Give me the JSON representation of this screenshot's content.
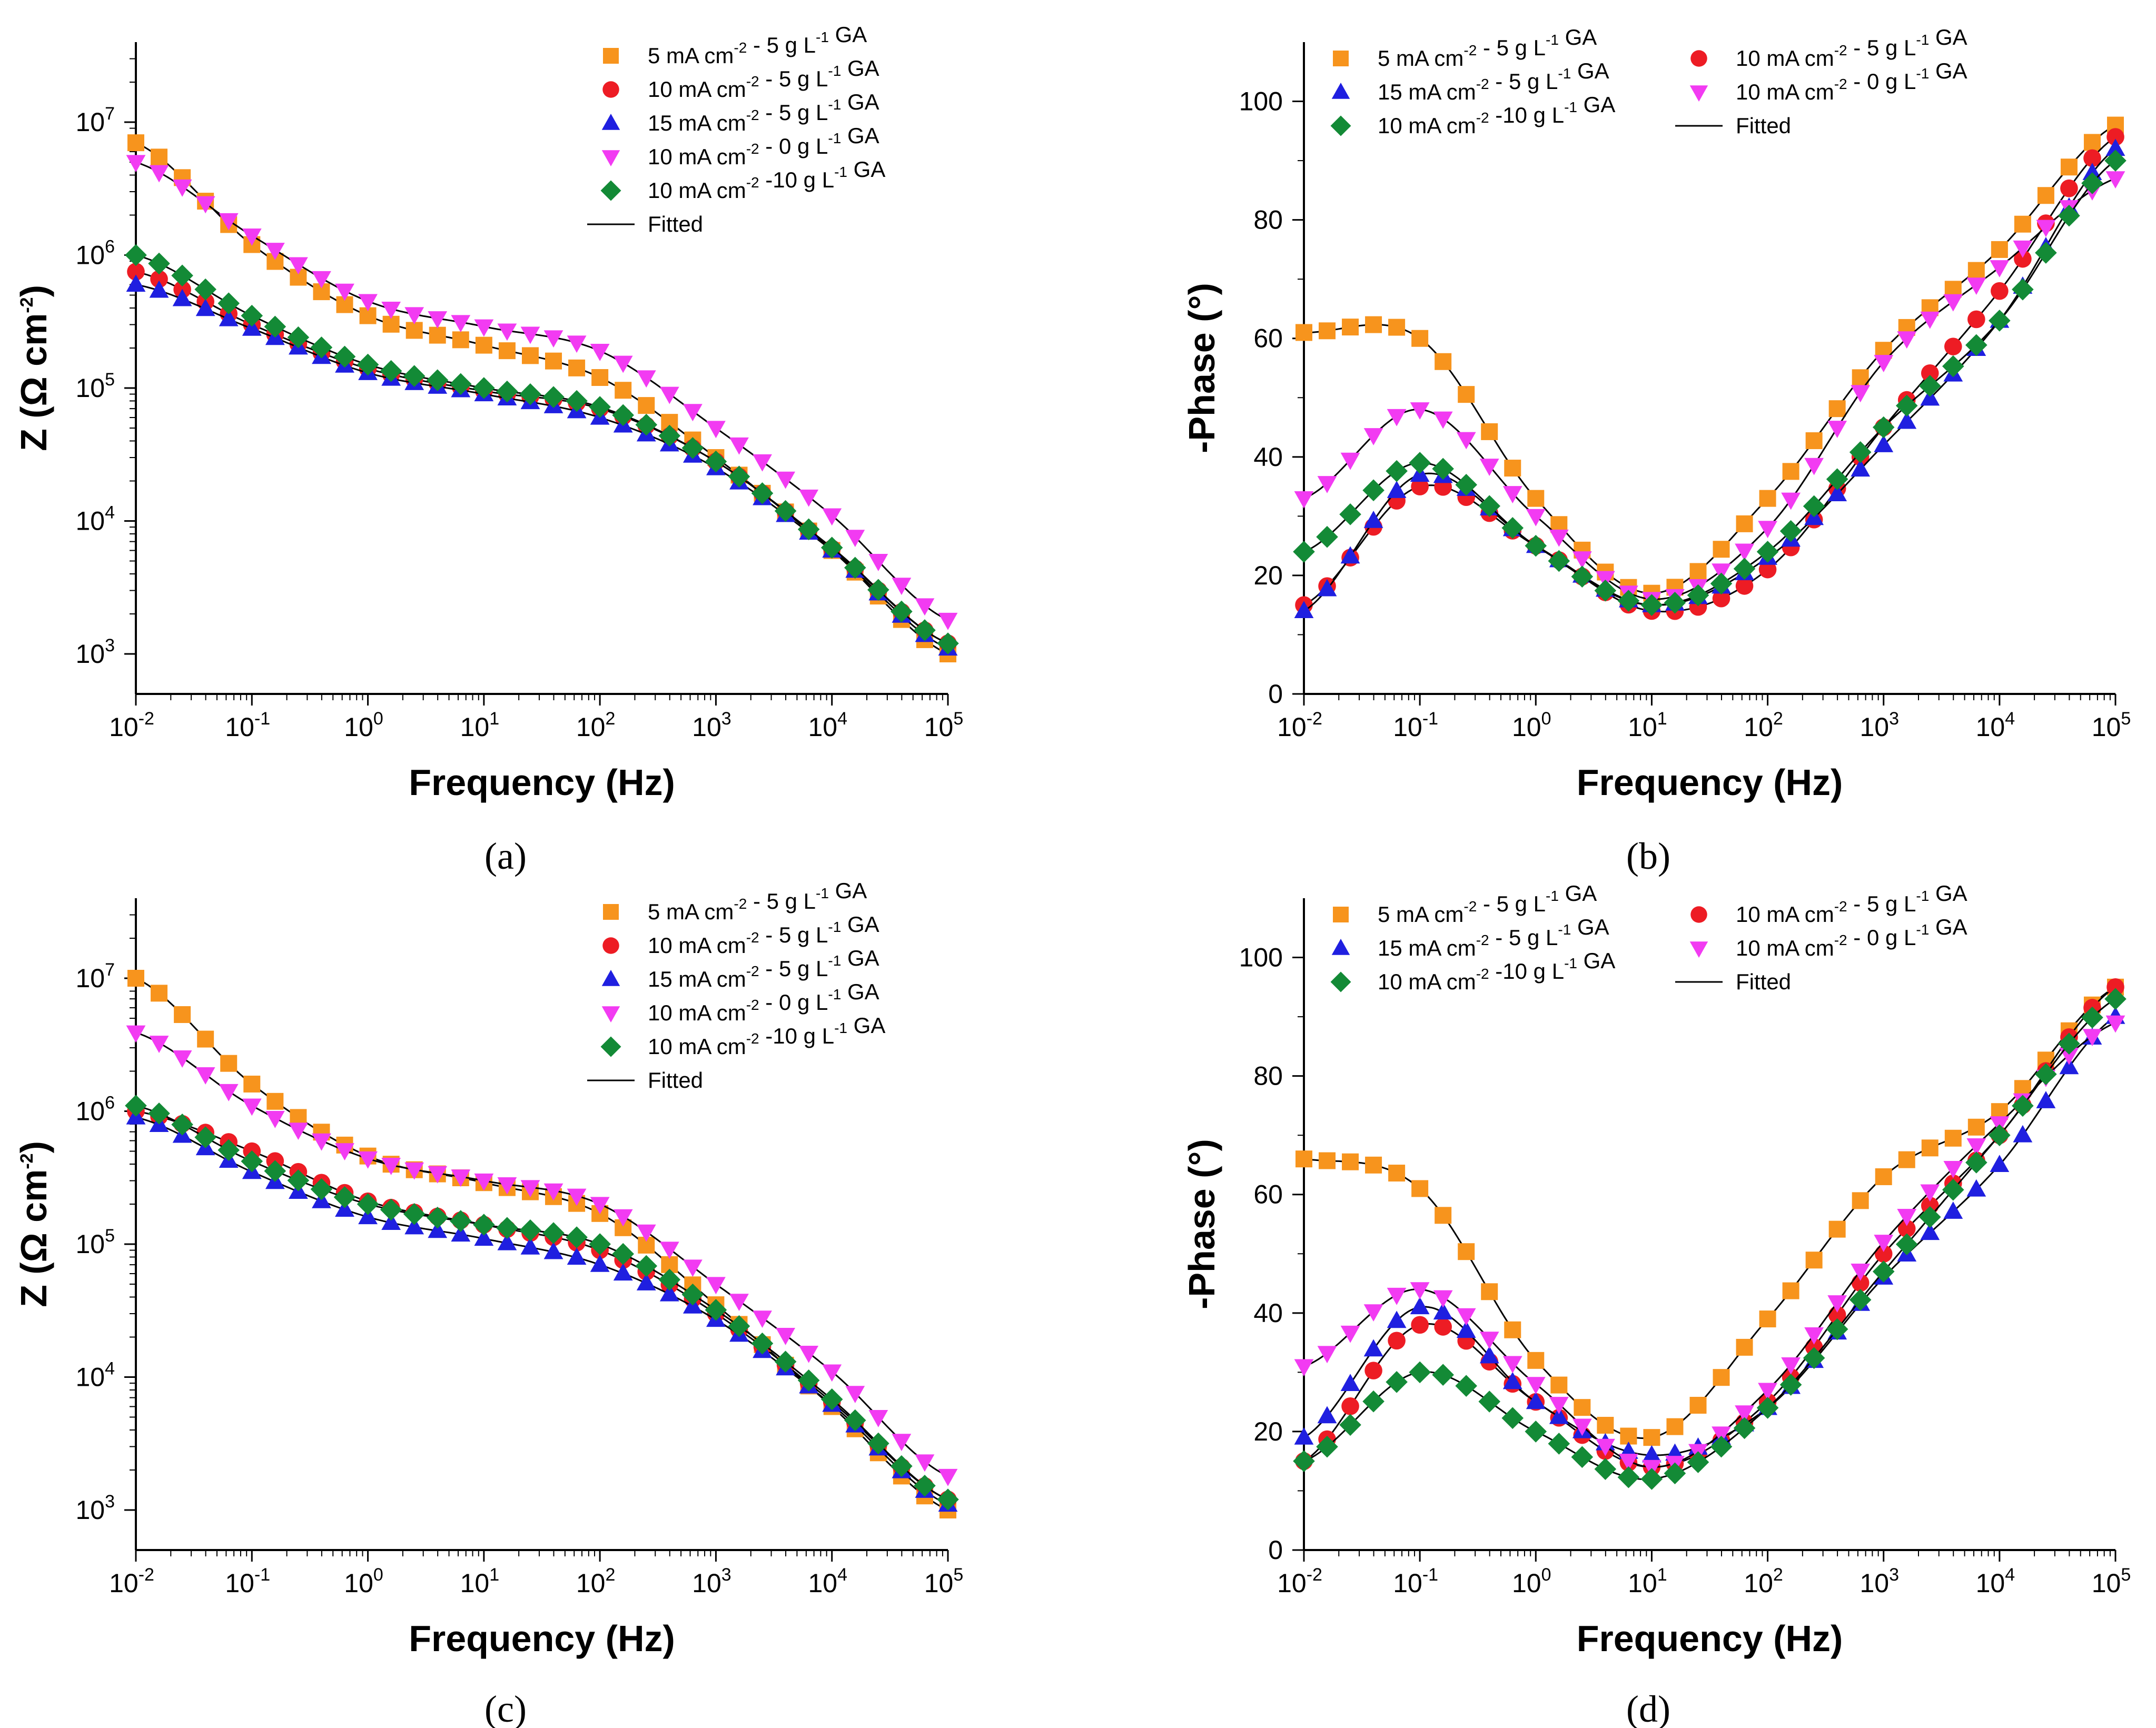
{
  "figure_type": "Electrochemical impedance spectroscopy",
  "chart_data": [
    {
      "panel": "(a)",
      "type": "scatter",
      "subtype": "bode-magnitude",
      "xlabel": "Frequency (Hz)",
      "ylabel": "Z (Ω cm-2)",
      "xscale": "log",
      "yscale": "log",
      "xlim": [
        0.01,
        100000
      ],
      "ylim": [
        500,
        40000000
      ],
      "x_ticks": [
        "10^-2",
        "10^-1",
        "10^0",
        "10^1",
        "10^2",
        "10^3",
        "10^4",
        "10^5"
      ],
      "y_ticks": [
        "10^3",
        "10^4",
        "10^5",
        "10^6",
        "10^7"
      ],
      "legend_position": "top-right",
      "legend": [
        {
          "id": "s5",
          "label": "5 mA cm-2 - 5 g L-1 GA",
          "marker": "square",
          "color": "#F7941D"
        },
        {
          "id": "s10",
          "label": "10 mA cm-2 - 5 g L-1 GA",
          "marker": "circle",
          "color": "#ED1C24"
        },
        {
          "id": "s15",
          "label": "15 mA cm-2 - 5 g L-1 GA",
          "marker": "triangle-up",
          "color": "#1F1FE0"
        },
        {
          "id": "s0",
          "label": "10 mA cm-2 - 0 g L-1 GA",
          "marker": "triangle-down",
          "color": "#F23BF2"
        },
        {
          "id": "sg10",
          "label": "10 mA cm-2 -10 g L-1 GA",
          "marker": "diamond",
          "color": "#138A36"
        },
        {
          "id": "fit",
          "label": "Fitted",
          "marker": "line",
          "color": "#000000"
        }
      ],
      "series": [
        {
          "id": "s5",
          "name": "5 mA cm-2 - 5 g L-1 GA",
          "x": [
            0.01,
            0.1,
            1,
            10,
            100,
            1000,
            10000,
            100000
          ],
          "y": [
            7000000,
            1200000,
            350000,
            210000,
            120000,
            30000,
            6000,
            1000
          ]
        },
        {
          "id": "s10",
          "name": "10 mA cm-2 - 5 g L-1 GA",
          "x": [
            0.01,
            0.1,
            1,
            10,
            100,
            1000,
            10000,
            100000
          ],
          "y": [
            750000,
            300000,
            140000,
            95000,
            70000,
            28000,
            6200,
            1200
          ]
        },
        {
          "id": "s15",
          "name": "15 mA cm-2 - 5 g L-1 GA",
          "x": [
            0.01,
            0.1,
            1,
            10,
            100,
            1000,
            10000,
            100000
          ],
          "y": [
            600000,
            280000,
            130000,
            90000,
            60000,
            25000,
            6000,
            1100
          ]
        },
        {
          "id": "s0",
          "name": "10 mA cm-2 - 0 g L-1 GA",
          "x": [
            0.01,
            0.1,
            1,
            10,
            100,
            1000,
            10000,
            100000
          ],
          "y": [
            5000000,
            1400000,
            450000,
            290000,
            190000,
            50000,
            11000,
            1800
          ]
        },
        {
          "id": "sg10",
          "name": "10 mA cm-2 -10 g L-1 GA",
          "x": [
            0.01,
            0.1,
            1,
            10,
            100,
            1000,
            10000,
            100000
          ],
          "y": [
            1000000,
            350000,
            150000,
            100000,
            72000,
            28000,
            6300,
            1200
          ]
        }
      ]
    },
    {
      "panel": "(b)",
      "type": "scatter",
      "subtype": "bode-phase",
      "xlabel": "Frequency (Hz)",
      "ylabel": "-Phase (°)",
      "xscale": "log",
      "yscale": "linear",
      "xlim": [
        0.01,
        100000
      ],
      "ylim": [
        0,
        110
      ],
      "x_ticks": [
        "10^-2",
        "10^-1",
        "10^0",
        "10^1",
        "10^2",
        "10^3",
        "10^4",
        "10^5"
      ],
      "y_ticks": [
        "0",
        "20",
        "40",
        "60",
        "80",
        "100"
      ],
      "legend_position": "top",
      "legend": [
        {
          "id": "s5",
          "label": "5 mA cm-2 - 5 g L-1 GA",
          "marker": "square",
          "color": "#F7941D"
        },
        {
          "id": "s10",
          "label": "10 mA cm-2 - 5 g L-1 GA",
          "marker": "circle",
          "color": "#ED1C24"
        },
        {
          "id": "s15",
          "label": "15 mA cm-2 - 5 g L-1 GA",
          "marker": "triangle-up",
          "color": "#1F1FE0"
        },
        {
          "id": "s0",
          "label": "10 mA cm-2 - 0 g L-1 GA",
          "marker": "triangle-down",
          "color": "#F23BF2"
        },
        {
          "id": "sg10",
          "label": "10 mA cm-2 -10 g L-1 GA",
          "marker": "diamond",
          "color": "#138A36"
        },
        {
          "id": "fit",
          "label": "Fitted",
          "marker": "line",
          "color": "#000000"
        }
      ],
      "series": [
        {
          "id": "s5",
          "name": "5 mA cm-2 - 5 g L-1 GA",
          "x": [
            0.01,
            0.1,
            1,
            10,
            100,
            1000,
            10000,
            100000
          ],
          "y": [
            61,
            60,
            33,
            17,
            33,
            58,
            75,
            96
          ]
        },
        {
          "id": "s10",
          "name": "10 mA cm-2 - 5 g L-1 GA",
          "x": [
            0.01,
            0.1,
            1,
            10,
            100,
            1000,
            10000,
            100000
          ],
          "y": [
            15,
            35,
            25,
            14,
            21,
            45,
            68,
            94
          ]
        },
        {
          "id": "s15",
          "name": "15 mA cm-2 - 5 g L-1 GA",
          "x": [
            0.01,
            0.1,
            1,
            10,
            100,
            1000,
            10000,
            100000
          ],
          "y": [
            14,
            37,
            25,
            15,
            23,
            42,
            63,
            92
          ]
        },
        {
          "id": "s0",
          "name": "10 mA cm-2 - 0 g L-1 GA",
          "x": [
            0.01,
            0.1,
            1,
            10,
            100,
            1000,
            10000,
            100000
          ],
          "y": [
            33,
            48,
            30,
            16,
            28,
            56,
            72,
            87
          ]
        },
        {
          "id": "sg10",
          "name": "10 mA cm-2 -10 g L-1 GA",
          "x": [
            0.01,
            0.1,
            1,
            10,
            100,
            1000,
            10000,
            100000
          ],
          "y": [
            24,
            39,
            25,
            15,
            24,
            45,
            63,
            90
          ]
        }
      ]
    },
    {
      "panel": "(c)",
      "type": "scatter",
      "subtype": "bode-magnitude",
      "xlabel": "Frequency (Hz)",
      "ylabel": "Z (Ω cm-2)",
      "xscale": "log",
      "yscale": "log",
      "xlim": [
        0.01,
        100000
      ],
      "ylim": [
        500,
        40000000
      ],
      "x_ticks": [
        "10^-2",
        "10^-1",
        "10^0",
        "10^1",
        "10^2",
        "10^3",
        "10^4",
        "10^5"
      ],
      "y_ticks": [
        "10^3",
        "10^4",
        "10^5",
        "10^6",
        "10^7"
      ],
      "legend_position": "top-right",
      "legend": [
        {
          "id": "s5",
          "label": "5 mA cm-2 - 5 g L-1 GA",
          "marker": "square",
          "color": "#F7941D"
        },
        {
          "id": "s10",
          "label": "10 mA cm-2 - 5 g L-1 GA",
          "marker": "circle",
          "color": "#ED1C24"
        },
        {
          "id": "s15",
          "label": "15 mA cm-2 - 5 g L-1 GA",
          "marker": "triangle-up",
          "color": "#1F1FE0"
        },
        {
          "id": "s0",
          "label": "10 mA cm-2 - 0 g L-1 GA",
          "marker": "triangle-down",
          "color": "#F23BF2"
        },
        {
          "id": "sg10",
          "label": "10 mA cm-2 -10 g L-1 GA",
          "marker": "diamond",
          "color": "#138A36"
        },
        {
          "id": "fit",
          "label": "Fitted",
          "marker": "line",
          "color": "#000000"
        }
      ],
      "series": [
        {
          "id": "s5",
          "name": "5 mA cm-2 - 5 g L-1 GA",
          "x": [
            0.01,
            0.1,
            1,
            10,
            100,
            1000,
            10000,
            100000
          ],
          "y": [
            10000000,
            1600000,
            460000,
            290000,
            170000,
            35000,
            6000,
            1000
          ]
        },
        {
          "id": "s10",
          "name": "10 mA cm-2 - 5 g L-1 GA",
          "x": [
            0.01,
            0.1,
            1,
            10,
            100,
            1000,
            10000,
            100000
          ],
          "y": [
            1000000,
            500000,
            210000,
            140000,
            90000,
            30000,
            6500,
            1200
          ]
        },
        {
          "id": "s15",
          "name": "15 mA cm-2 - 5 g L-1 GA",
          "x": [
            0.01,
            0.1,
            1,
            10,
            100,
            1000,
            10000,
            100000
          ],
          "y": [
            900000,
            350000,
            160000,
            110000,
            70000,
            27000,
            6200,
            1100
          ]
        },
        {
          "id": "s0",
          "name": "10 mA cm-2 - 0 g L-1 GA",
          "x": [
            0.01,
            0.1,
            1,
            10,
            100,
            1000,
            10000,
            100000
          ],
          "y": [
            3900000,
            1100000,
            440000,
            300000,
            200000,
            50000,
            11000,
            1800
          ]
        },
        {
          "id": "sg10",
          "name": "10 mA cm-2 -10 g L-1 GA",
          "x": [
            0.01,
            0.1,
            1,
            10,
            100,
            1000,
            10000,
            100000
          ],
          "y": [
            1100000,
            420000,
            200000,
            140000,
            100000,
            32000,
            6800,
            1200
          ]
        }
      ]
    },
    {
      "panel": "(d)",
      "type": "scatter",
      "subtype": "bode-phase",
      "xlabel": "Frequency (Hz)",
      "ylabel": "-Phase (°)",
      "xscale": "log",
      "yscale": "linear",
      "xlim": [
        0.01,
        100000
      ],
      "ylim": [
        0,
        110
      ],
      "x_ticks": [
        "10^-2",
        "10^-1",
        "10^0",
        "10^1",
        "10^2",
        "10^3",
        "10^4",
        "10^5"
      ],
      "y_ticks": [
        "0",
        "20",
        "40",
        "60",
        "80",
        "100"
      ],
      "legend_position": "top",
      "legend": [
        {
          "id": "s5",
          "label": "5 mA cm-2 - 5 g L-1 GA",
          "marker": "square",
          "color": "#F7941D"
        },
        {
          "id": "s10",
          "label": "10 mA cm-2 - 5 g L-1 GA",
          "marker": "circle",
          "color": "#ED1C24"
        },
        {
          "id": "s15",
          "label": "15 mA cm-2 - 5 g L-1 GA",
          "marker": "triangle-up",
          "color": "#1F1FE0"
        },
        {
          "id": "s0",
          "label": "10 mA cm-2 - 0 g L-1 GA",
          "marker": "triangle-down",
          "color": "#F23BF2"
        },
        {
          "id": "sg10",
          "label": "10 mA cm-2 -10 g L-1 GA",
          "marker": "diamond",
          "color": "#138A36"
        },
        {
          "id": "fit",
          "label": "Fitted",
          "marker": "line",
          "color": "#000000"
        }
      ],
      "series": [
        {
          "id": "s5",
          "name": "5 mA cm-2 - 5 g L-1 GA",
          "x": [
            0.01,
            0.1,
            1,
            10,
            100,
            1000,
            10000,
            100000
          ],
          "y": [
            66,
            61,
            32,
            19,
            39,
            63,
            74,
            95
          ]
        },
        {
          "id": "s10",
          "name": "10 mA cm-2 - 5 g L-1 GA",
          "x": [
            0.01,
            0.1,
            1,
            10,
            100,
            1000,
            10000,
            100000
          ],
          "y": [
            15,
            38,
            25,
            14,
            25,
            50,
            70,
            95
          ]
        },
        {
          "id": "s15",
          "name": "15 mA cm-2 - 5 g L-1 GA",
          "x": [
            0.01,
            0.1,
            1,
            10,
            100,
            1000,
            10000,
            100000
          ],
          "y": [
            19,
            41,
            25,
            16,
            24,
            46,
            65,
            90
          ]
        },
        {
          "id": "s0",
          "name": "10 mA cm-2 - 0 g L-1 GA",
          "x": [
            0.01,
            0.1,
            1,
            10,
            100,
            1000,
            10000,
            100000
          ],
          "y": [
            31,
            44,
            28,
            14,
            27,
            52,
            72,
            89
          ]
        },
        {
          "id": "sg10",
          "name": "10 mA cm-2 -10 g L-1 GA",
          "x": [
            0.01,
            0.1,
            1,
            10,
            100,
            1000,
            10000,
            100000
          ],
          "y": [
            15,
            30,
            20,
            12,
            24,
            47,
            70,
            93
          ]
        }
      ]
    }
  ]
}
